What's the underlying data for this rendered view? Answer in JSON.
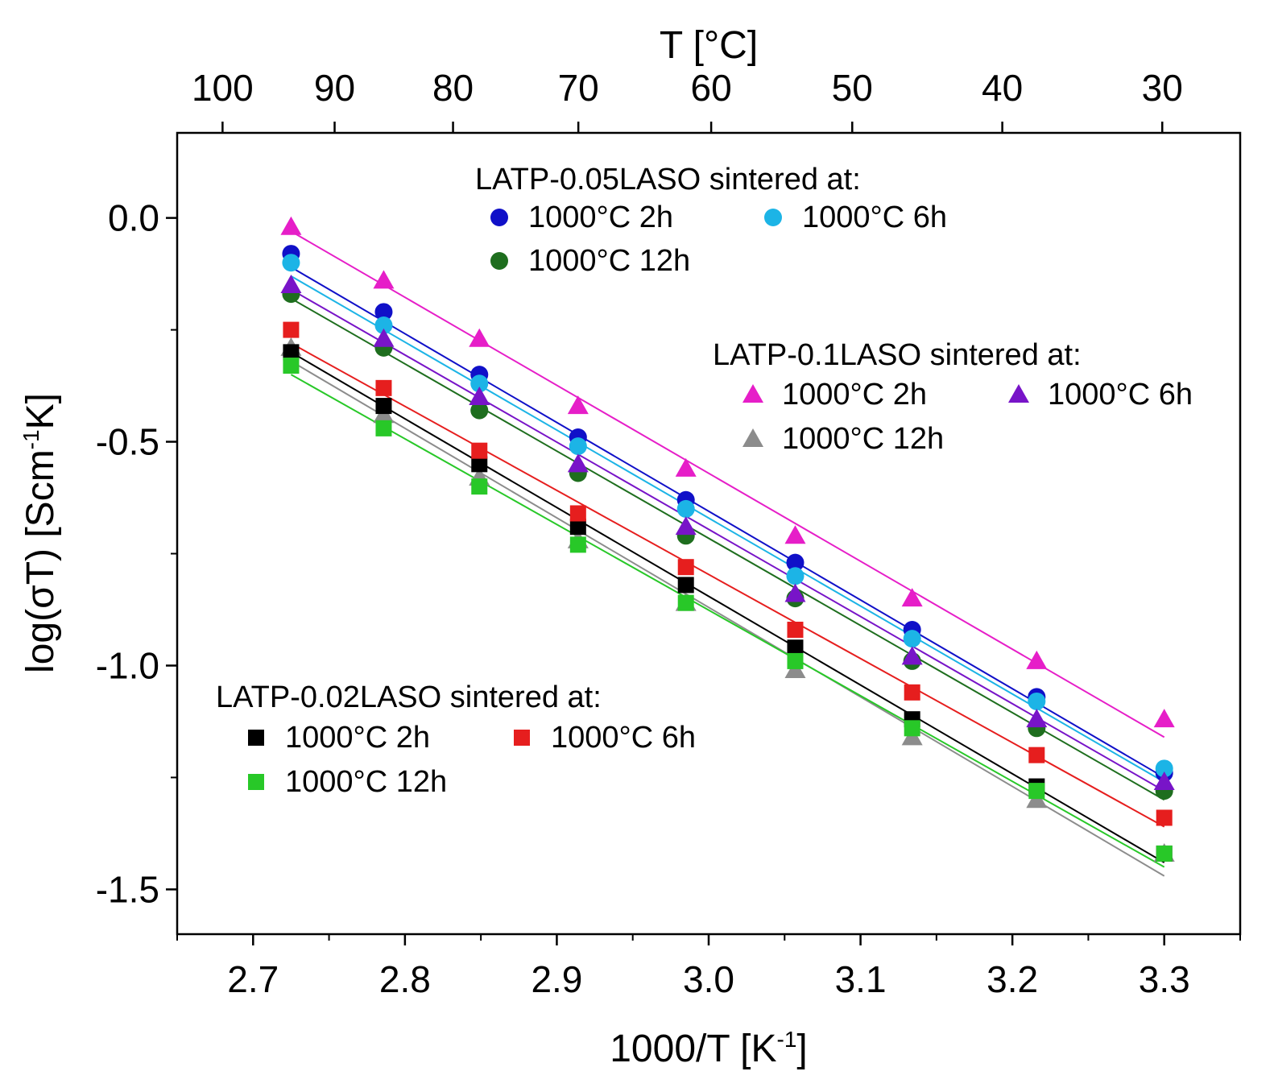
{
  "chart_data": {
    "type": "scatter",
    "xlabel": "1000/T [K",
    "xlabel_sup": "-1",
    "xlabel_end": "]",
    "ylabel": "log(σT) [Scm",
    "ylabel_sup": "-1",
    "ylabel_end": "K]",
    "top_axis_label": "T [°C]",
    "xlim": [
      2.65,
      3.35
    ],
    "ylim": [
      -1.6,
      0.19
    ],
    "x_ticks": [
      2.7,
      2.8,
      2.9,
      3.0,
      3.1,
      3.2,
      3.3
    ],
    "x_tick_labels": [
      "2.7",
      "2.8",
      "2.9",
      "3.0",
      "3.1",
      "3.2",
      "3.3"
    ],
    "y_ticks": [
      0.0,
      -0.5,
      -1.0,
      -1.5
    ],
    "y_tick_labels": [
      "0.0",
      "-0.5",
      "-1.0",
      "-1.5"
    ],
    "top_ticks_celsius": [
      100,
      90,
      80,
      70,
      60,
      50,
      40,
      30
    ],
    "top_tick_labels": [
      "100",
      "90",
      "80",
      "70",
      "60",
      "50",
      "40",
      "30"
    ],
    "x": [
      2.725,
      2.786,
      2.849,
      2.914,
      2.985,
      3.057,
      3.134,
      3.216,
      3.3
    ],
    "legend_groups": [
      {
        "title": "LATP-0.05LASO sintered at:",
        "position": "top-center"
      },
      {
        "title": "LATP-0.1LASO sintered at:",
        "position": "middle-right"
      },
      {
        "title": "LATP-0.02LASO sintered at:",
        "position": "bottom-left"
      }
    ],
    "series": [
      {
        "group": 0,
        "name": "1000°C 2h",
        "marker": "circle",
        "color": "#1010c8",
        "values": [
          -0.08,
          -0.21,
          -0.35,
          -0.49,
          -0.63,
          -0.77,
          -0.92,
          -1.07,
          -1.24
        ],
        "fit": [
          -0.11,
          -1.25
        ]
      },
      {
        "group": 0,
        "name": "1000°C 6h",
        "marker": "circle",
        "color": "#1cb4e6",
        "values": [
          -0.1,
          -0.24,
          -0.37,
          -0.51,
          -0.65,
          -0.8,
          -0.94,
          -1.08,
          -1.23
        ],
        "fit": [
          -0.13,
          -1.26
        ]
      },
      {
        "group": 0,
        "name": "1000°C 12h",
        "marker": "circle",
        "color": "#1e6e1e",
        "values": [
          -0.17,
          -0.29,
          -0.43,
          -0.57,
          -0.71,
          -0.85,
          -0.99,
          -1.14,
          -1.28
        ],
        "fit": [
          -0.18,
          -1.3
        ]
      },
      {
        "group": 1,
        "name": "1000°C 2h",
        "marker": "triangle",
        "color": "#e61ec8",
        "values": [
          -0.02,
          -0.14,
          -0.27,
          -0.42,
          -0.56,
          -0.71,
          -0.85,
          -0.99,
          -1.12
        ],
        "fit": [
          -0.03,
          -1.16
        ]
      },
      {
        "group": 1,
        "name": "1000°C 6h",
        "marker": "triangle",
        "color": "#7814c8",
        "values": [
          -0.15,
          -0.27,
          -0.4,
          -0.55,
          -0.69,
          -0.84,
          -0.98,
          -1.12,
          -1.26
        ],
        "fit": [
          -0.16,
          -1.28
        ]
      },
      {
        "group": 1,
        "name": "1000°C 12h",
        "marker": "triangle",
        "color": "#8c8c8c",
        "values": [
          -0.29,
          -0.44,
          -0.58,
          -0.72,
          -0.86,
          -1.01,
          -1.16,
          -1.3,
          -1.42
        ],
        "fit": [
          -0.32,
          -1.47
        ]
      },
      {
        "group": 2,
        "name": "1000°C 2h",
        "marker": "square",
        "color": "#000000",
        "values": [
          -0.3,
          -0.42,
          -0.55,
          -0.69,
          -0.82,
          -0.96,
          -1.12,
          -1.27,
          -1.42
        ],
        "fit": [
          -0.3,
          -1.44
        ]
      },
      {
        "group": 2,
        "name": "1000°C 6h",
        "marker": "square",
        "color": "#e61e1e",
        "values": [
          -0.25,
          -0.38,
          -0.52,
          -0.66,
          -0.78,
          -0.92,
          -1.06,
          -1.2,
          -1.34
        ],
        "fit": [
          -0.28,
          -1.36
        ]
      },
      {
        "group": 2,
        "name": "1000°C 12h",
        "marker": "square",
        "color": "#28c828",
        "values": [
          -0.33,
          -0.47,
          -0.6,
          -0.73,
          -0.86,
          -0.99,
          -1.14,
          -1.28,
          -1.42
        ],
        "fit": [
          -0.35,
          -1.45
        ]
      }
    ]
  }
}
